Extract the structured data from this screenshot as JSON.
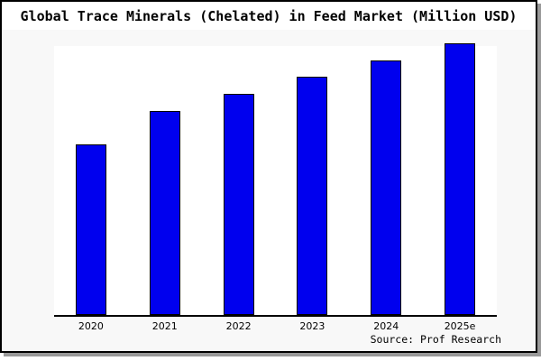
{
  "title": "Global Trace Minerals (Chelated) in Feed Market (Million USD)",
  "source": "Source: Prof Research",
  "colors": {
    "bar": "#0000ee",
    "bar_border": "#000000",
    "figure_background": "#f8f8f8",
    "plot_background": "#ffffff",
    "title_band_background": "#ffffff",
    "frame_border": "#000000",
    "frame_shadow": "#999999",
    "axis_line": "#000000"
  },
  "chart_data": {
    "type": "bar",
    "title": "Global Trace Minerals (Chelated) in Feed Market (Million USD)",
    "categories": [
      "2020",
      "2021",
      "2022",
      "2023",
      "2024",
      "2025e"
    ],
    "values": [
      189,
      226,
      245,
      264,
      282,
      301
    ],
    "units": "relative bar heights in px — chart displays no y-axis scale or data labels",
    "xlabel": "",
    "ylabel": "",
    "y_axis_visible": false,
    "grid": false,
    "legend": null,
    "bar_color": "#0000ee",
    "annotation": "Source: Prof Research"
  }
}
